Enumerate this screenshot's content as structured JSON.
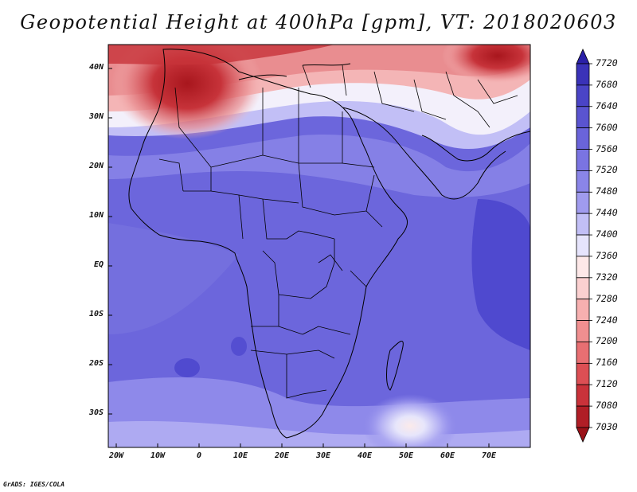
{
  "title": "Geopotential Height at 400hPa [gpm], VT: 2018020603",
  "footer": "GrADS: IGES/COLA",
  "colors": {
    "deep_red": "#a8161d",
    "red": "#e0484f",
    "pink": "#f4a6a8",
    "white": "#fbf4f4",
    "light_blue": "#d6d5fa",
    "mid_blue": "#8e89ea",
    "blue": "#6c66dc",
    "dark_blue": "#4a44cc"
  },
  "map": {
    "y_ticks": [
      {
        "label": "40N",
        "lat": 40
      },
      {
        "label": "30N",
        "lat": 30
      },
      {
        "label": "20N",
        "lat": 20
      },
      {
        "label": "10N",
        "lat": 10
      },
      {
        "label": "EQ",
        "lat": 0
      },
      {
        "label": "10S",
        "lat": -10
      },
      {
        "label": "20S",
        "lat": -20
      },
      {
        "label": "30S",
        "lat": -30
      }
    ],
    "x_ticks": [
      {
        "label": "20W",
        "lon": -20
      },
      {
        "label": "10W",
        "lon": -10
      },
      {
        "label": "0",
        "lon": 0
      },
      {
        "label": "10E",
        "lon": 10
      },
      {
        "label": "20E",
        "lon": 20
      },
      {
        "label": "30E",
        "lon": 30
      },
      {
        "label": "40E",
        "lon": 40
      },
      {
        "label": "50E",
        "lon": 50
      },
      {
        "label": "60E",
        "lon": 60
      },
      {
        "label": "70E",
        "lon": 70
      }
    ]
  },
  "colorbar": {
    "levels": [
      "7720",
      "7680",
      "7640",
      "7600",
      "7560",
      "7520",
      "7480",
      "7440",
      "7400",
      "7360",
      "7320",
      "7280",
      "7240",
      "7200",
      "7160",
      "7120",
      "7080",
      "7030"
    ],
    "colors": [
      "#2a20a8",
      "#3a32b8",
      "#4a44c6",
      "#5a54d0",
      "#6a64da",
      "#7a74e2",
      "#8a85e8",
      "#a09bee",
      "#c2bff6",
      "#e6e4fc",
      "#fde8e8",
      "#fbd0d0",
      "#f7b0b0",
      "#f08f90",
      "#e86f72",
      "#dc4f54",
      "#c9323a",
      "#b01e26",
      "#9a1218"
    ]
  }
}
